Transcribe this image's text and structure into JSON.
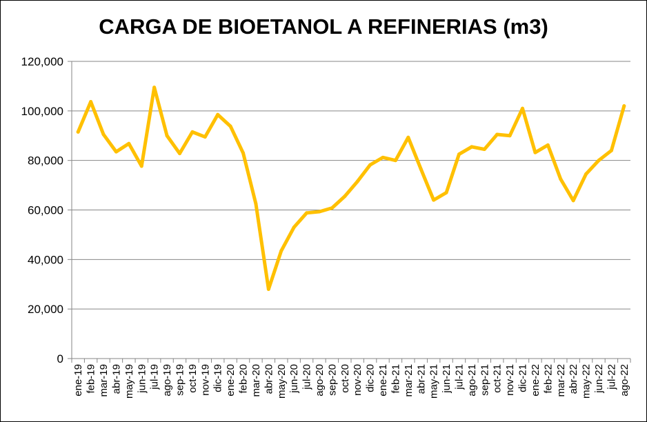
{
  "chart_data": {
    "type": "line",
    "title": "CARGA DE BIOETANOL A REFINERIAS (m3)",
    "xlabel": "",
    "ylabel": "",
    "ylim": [
      0,
      120000
    ],
    "y_ticks": [
      0,
      20000,
      40000,
      60000,
      80000,
      100000,
      120000
    ],
    "y_tick_labels": [
      "0",
      "20,000",
      "40,000",
      "60,000",
      "80,000",
      "100,000",
      "120,000"
    ],
    "grid": true,
    "legend": "none",
    "line_color": "#FFC000",
    "categories": [
      "ene-19",
      "feb-19",
      "mar-19",
      "abr-19",
      "may-19",
      "jun-19",
      "jul-19",
      "ago-19",
      "sep-19",
      "oct-19",
      "nov-19",
      "dic-19",
      "ene-20",
      "feb-20",
      "mar-20",
      "abr-20",
      "may-20",
      "jun-20",
      "jul-20",
      "ago-20",
      "sep-20",
      "oct-20",
      "nov-20",
      "dic-20",
      "ene-21",
      "feb-21",
      "mar-21",
      "abr-21",
      "may-21",
      "jun-21",
      "jul-21",
      "ago-21",
      "sep-21",
      "oct-21",
      "nov-21",
      "dic-21",
      "ene-22",
      "feb-22",
      "mar-22",
      "abr-22",
      "may-22",
      "jun-22",
      "jul-22",
      "ago-22"
    ],
    "series": [
      {
        "values": [
          91500,
          103700,
          90500,
          83500,
          86800,
          77700,
          109500,
          90000,
          82800,
          91500,
          89500,
          98500,
          93800,
          83000,
          62500,
          28000,
          43500,
          53000,
          58800,
          59300,
          60800,
          65500,
          71500,
          78200,
          81200,
          80000,
          89300,
          76500,
          64000,
          67000,
          82500,
          85500,
          84500,
          90500,
          90000,
          101000,
          83200,
          86200,
          72500,
          63800,
          74500,
          80000,
          84000,
          102000
        ]
      }
    ]
  }
}
